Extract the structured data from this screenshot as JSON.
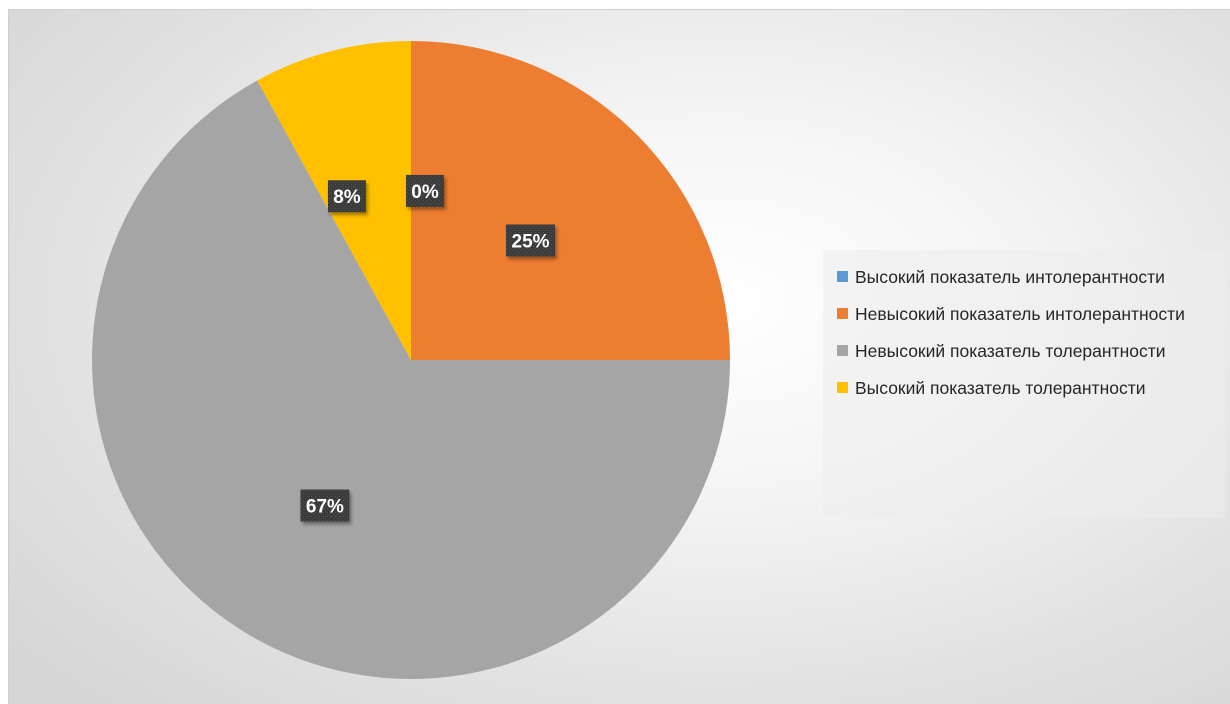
{
  "chart_data": {
    "type": "pie",
    "title": "",
    "slices": [
      {
        "label": "Высокий показатель интолерантности",
        "value": 0,
        "display": "0%",
        "color": "#5B9BD5"
      },
      {
        "label": "Невысокий показатель интолерантности",
        "value": 25,
        "display": "25%",
        "color": "#ED7D31"
      },
      {
        "label": "Невысокий показатель толерантности",
        "value": 67,
        "display": "67%",
        "color": "#A5A5A5"
      },
      {
        "label": "Высокий показатель толерантности",
        "value": 8,
        "display": "8%",
        "color": "#FFC000"
      }
    ],
    "start_angle_deg": 0,
    "direction": "clockwise",
    "legend_position": "right"
  }
}
